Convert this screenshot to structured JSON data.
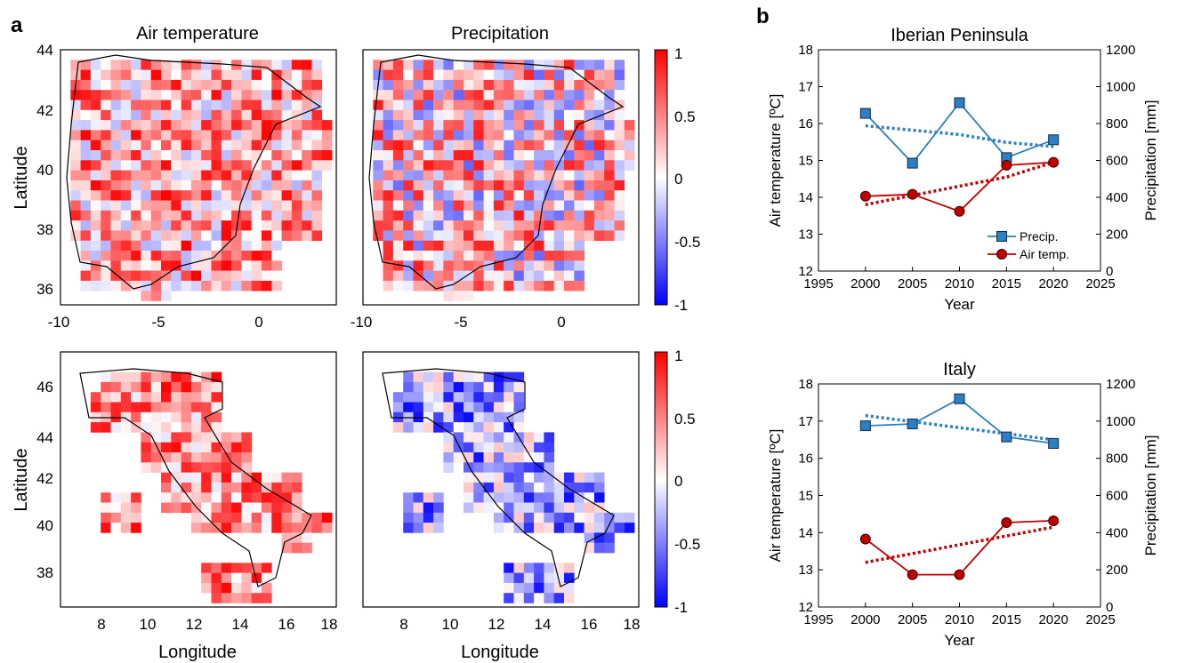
{
  "panel_a": {
    "letter": "a",
    "col_titles": [
      "Air temperature",
      "Precipitation"
    ],
    "ylabel": "Latitude",
    "xlabel": "Longitude",
    "colorbar": {
      "ticks": [
        "1",
        "0.5",
        "0",
        "-0.5",
        "-1"
      ],
      "colors": {
        "high": "#ff0000",
        "mid": "#ffffff",
        "low": "#0000ff"
      }
    },
    "iberia": {
      "lat_ticks": [
        "44",
        "42",
        "40",
        "38",
        "36"
      ],
      "lon_ticks": [
        "-10",
        "-5",
        "0"
      ]
    },
    "italy": {
      "lat_ticks": [
        "46",
        "44",
        "42",
        "40",
        "38"
      ],
      "lon_ticks": [
        "8",
        "10",
        "12",
        "14",
        "16",
        "18"
      ]
    }
  },
  "panel_b": {
    "letter": "b",
    "legend": {
      "precip": "Precip.",
      "air": "Air temp."
    },
    "colors": {
      "precip": "#2e7fc1",
      "air": "#c00000"
    }
  },
  "chart_data": [
    {
      "type": "line",
      "title": "Iberian Peninsula",
      "xlabel": "Year",
      "ylabel_left": "Air temperature [ºC]",
      "ylabel_right": "Precipitation [mm]",
      "x": [
        2000,
        2005,
        2010,
        2015,
        2020
      ],
      "xlim": [
        1995,
        2025
      ],
      "xticks": [
        "1995",
        "2000",
        "2005",
        "2010",
        "2015",
        "2020",
        "2025"
      ],
      "ylim_left": [
        12,
        18
      ],
      "yticks_left": [
        "12",
        "13",
        "14",
        "15",
        "16",
        "17",
        "18"
      ],
      "ylim_right": [
        0,
        1200
      ],
      "yticks_right": [
        "0",
        "200",
        "400",
        "600",
        "800",
        "1000",
        "1200"
      ],
      "series": [
        {
          "name": "Precip.",
          "axis": "right",
          "values": [
            855,
            585,
            913,
            615,
            712
          ],
          "trend": [
            788,
            740,
            698,
            675
          ]
        },
        {
          "name": "Air temp.",
          "axis": "left",
          "values": [
            14.03,
            14.08,
            13.62,
            14.87,
            14.95
          ],
          "trend": [
            13.8,
            14.3,
            14.55,
            14.95
          ]
        }
      ],
      "trend_x": [
        2000,
        2010,
        2015,
        2020
      ]
    },
    {
      "type": "line",
      "title": "Italy",
      "xlabel": "Year",
      "ylabel_left": "Air temperature [ºC]",
      "ylabel_right": "Precipitation [mm]",
      "x": [
        2000,
        2005,
        2010,
        2015,
        2020
      ],
      "xlim": [
        1995,
        2025
      ],
      "xticks": [
        "1995",
        "2000",
        "2005",
        "2010",
        "2015",
        "2020",
        "2025"
      ],
      "ylim_left": [
        12,
        18
      ],
      "yticks_left": [
        "12",
        "13",
        "14",
        "15",
        "16",
        "17",
        "18"
      ],
      "ylim_right": [
        0,
        1200
      ],
      "yticks_right": [
        "0",
        "200",
        "400",
        "600",
        "800",
        "1000",
        "1200"
      ],
      "series": [
        {
          "name": "Precip.",
          "axis": "right",
          "values": [
            975,
            985,
            1120,
            915,
            880
          ],
          "trend": [
            1030,
            900
          ]
        },
        {
          "name": "Air temp.",
          "axis": "left",
          "values": [
            13.83,
            12.87,
            12.87,
            14.27,
            14.32
          ],
          "trend": [
            13.2,
            14.15
          ]
        }
      ],
      "trend_x": [
        2000,
        2020
      ]
    }
  ]
}
